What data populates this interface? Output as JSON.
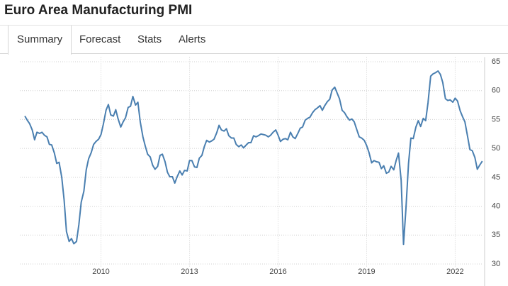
{
  "header": {
    "title": "Euro Area Manufacturing PMI"
  },
  "tabs": [
    "Summary",
    "Forecast",
    "Stats",
    "Alerts"
  ],
  "chart_data": {
    "type": "line",
    "x": [
      2007.42,
      2007.5,
      2007.58,
      2007.67,
      2007.75,
      2007.83,
      2007.92,
      2008,
      2008.08,
      2008.17,
      2008.25,
      2008.33,
      2008.42,
      2008.5,
      2008.58,
      2008.67,
      2008.75,
      2008.83,
      2008.92,
      2009,
      2009.08,
      2009.17,
      2009.25,
      2009.33,
      2009.42,
      2009.5,
      2009.58,
      2009.67,
      2009.75,
      2009.83,
      2009.92,
      2010,
      2010.08,
      2010.17,
      2010.25,
      2010.33,
      2010.42,
      2010.5,
      2010.58,
      2010.67,
      2010.75,
      2010.83,
      2010.92,
      2011,
      2011.08,
      2011.17,
      2011.25,
      2011.33,
      2011.42,
      2011.5,
      2011.58,
      2011.67,
      2011.75,
      2011.83,
      2011.92,
      2012,
      2012.08,
      2012.17,
      2012.25,
      2012.33,
      2012.42,
      2012.5,
      2012.58,
      2012.67,
      2012.75,
      2012.83,
      2012.92,
      2013,
      2013.08,
      2013.17,
      2013.25,
      2013.33,
      2013.42,
      2013.5,
      2013.58,
      2013.67,
      2013.75,
      2013.83,
      2013.92,
      2014,
      2014.08,
      2014.17,
      2014.25,
      2014.33,
      2014.42,
      2014.5,
      2014.58,
      2014.67,
      2014.75,
      2014.83,
      2014.92,
      2015,
      2015.08,
      2015.17,
      2015.25,
      2015.33,
      2015.42,
      2015.5,
      2015.58,
      2015.67,
      2015.75,
      2015.83,
      2015.92,
      2016,
      2016.08,
      2016.17,
      2016.25,
      2016.33,
      2016.42,
      2016.5,
      2016.58,
      2016.67,
      2016.75,
      2016.83,
      2016.92,
      2017,
      2017.08,
      2017.17,
      2017.25,
      2017.33,
      2017.42,
      2017.5,
      2017.58,
      2017.67,
      2017.75,
      2017.83,
      2017.92,
      2018,
      2018.08,
      2018.17,
      2018.25,
      2018.33,
      2018.42,
      2018.5,
      2018.58,
      2018.67,
      2018.75,
      2018.83,
      2018.92,
      2019,
      2019.08,
      2019.17,
      2019.25,
      2019.33,
      2019.42,
      2019.5,
      2019.58,
      2019.67,
      2019.75,
      2019.83,
      2019.92,
      2020,
      2020.08,
      2020.17,
      2020.25,
      2020.33,
      2020.42,
      2020.5,
      2020.58,
      2020.67,
      2020.75,
      2020.83,
      2020.92,
      2021,
      2021.08,
      2021.17,
      2021.25,
      2021.33,
      2021.42,
      2021.5,
      2021.58,
      2021.67,
      2021.75,
      2021.83,
      2021.92,
      2022,
      2022.08,
      2022.17,
      2022.25,
      2022.33,
      2022.42,
      2022.5,
      2022.58,
      2022.67,
      2022.75,
      2022.83,
      2022.92
    ],
    "series": [
      {
        "color": "#4a7fb0",
        "values": [
          55.6,
          54.9,
          54.3,
          53.2,
          51.5,
          52.8,
          52.6,
          52.8,
          52.3,
          52.0,
          50.7,
          50.6,
          49.2,
          47.4,
          47.6,
          45.0,
          41.1,
          35.6,
          33.9,
          34.4,
          33.5,
          33.9,
          36.8,
          40.7,
          42.6,
          46.3,
          48.2,
          49.3,
          50.7,
          51.2,
          51.6,
          52.4,
          54.2,
          56.6,
          57.6,
          55.8,
          55.6,
          56.7,
          55.1,
          53.7,
          54.6,
          55.3,
          57.1,
          57.3,
          59.0,
          57.5,
          58.0,
          54.6,
          52.0,
          50.4,
          49.0,
          48.5,
          47.1,
          46.4,
          46.9,
          48.8,
          49.0,
          47.7,
          45.9,
          45.1,
          45.1,
          44.0,
          45.1,
          46.1,
          45.4,
          46.2,
          46.1,
          47.9,
          47.9,
          46.8,
          46.7,
          48.3,
          48.8,
          50.3,
          51.4,
          51.1,
          51.3,
          51.6,
          52.7,
          54.0,
          53.2,
          53.0,
          53.4,
          52.2,
          51.8,
          51.8,
          50.7,
          50.3,
          50.6,
          50.1,
          50.6,
          51.0,
          51.0,
          52.2,
          52.0,
          52.2,
          52.5,
          52.4,
          52.3,
          52.0,
          52.3,
          52.8,
          53.2,
          52.3,
          51.2,
          51.6,
          51.7,
          51.5,
          52.8,
          52.0,
          51.7,
          52.6,
          53.5,
          53.7,
          54.9,
          55.2,
          55.4,
          56.2,
          56.7,
          57.0,
          57.4,
          56.6,
          57.4,
          58.1,
          58.5,
          60.1,
          60.6,
          59.6,
          58.6,
          56.6,
          56.2,
          55.5,
          54.9,
          55.1,
          54.6,
          53.2,
          52.0,
          51.8,
          51.4,
          50.5,
          49.3,
          47.5,
          47.9,
          47.7,
          47.6,
          46.5,
          47.0,
          45.7,
          45.9,
          46.9,
          46.3,
          47.9,
          49.2,
          44.5,
          33.4,
          39.4,
          47.4,
          51.8,
          51.7,
          53.7,
          54.8,
          53.8,
          55.2,
          54.8,
          57.9,
          62.5,
          62.9,
          63.1,
          63.4,
          62.8,
          61.4,
          58.6,
          58.3,
          58.4,
          58.0,
          58.7,
          58.2,
          56.5,
          55.5,
          54.6,
          52.1,
          49.8,
          49.6,
          48.4,
          46.4,
          47.1,
          47.8
        ]
      }
    ],
    "xlim": [
      2007.25,
      2022.95
    ],
    "xticks": [
      2010,
      2013,
      2016,
      2019,
      2022
    ],
    "ylim": [
      28.5,
      65.8
    ],
    "yticks": [
      30,
      35,
      40,
      45,
      50,
      55,
      60,
      65
    ],
    "grid": true
  }
}
